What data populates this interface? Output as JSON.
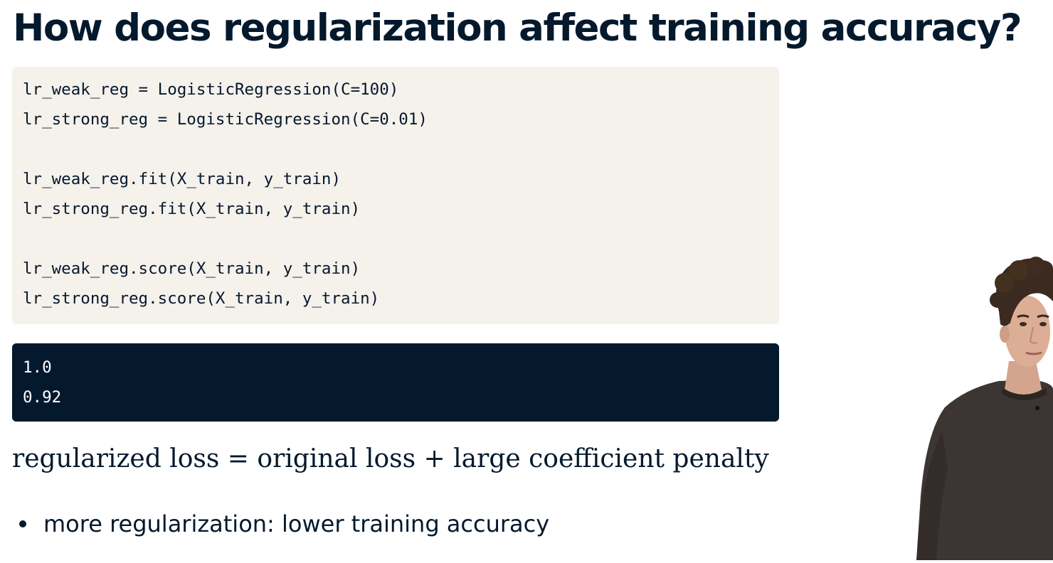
{
  "slide": {
    "title": "How does regularization affect training accuracy?"
  },
  "code": {
    "lines": [
      "lr_weak_reg = LogisticRegression(C=100)",
      "lr_strong_reg = LogisticRegression(C=0.01)",
      "",
      "lr_weak_reg.fit(X_train, y_train)",
      "lr_strong_reg.fit(X_train, y_train)",
      "",
      "lr_weak_reg.score(X_train, y_train)",
      "lr_strong_reg.score(X_train, y_train)"
    ]
  },
  "output": {
    "lines": [
      "1.0",
      "0.92"
    ]
  },
  "formula": "regularized loss = original loss + large coefficient penalty",
  "bullets": [
    "more regularization: lower training accuracy"
  ],
  "colors": {
    "navy": "#05192d",
    "code_bg": "#f5f1eb",
    "output_bg": "#05192d",
    "output_text": "#ffffff"
  },
  "presenter": {
    "icon": "presenter-video"
  }
}
